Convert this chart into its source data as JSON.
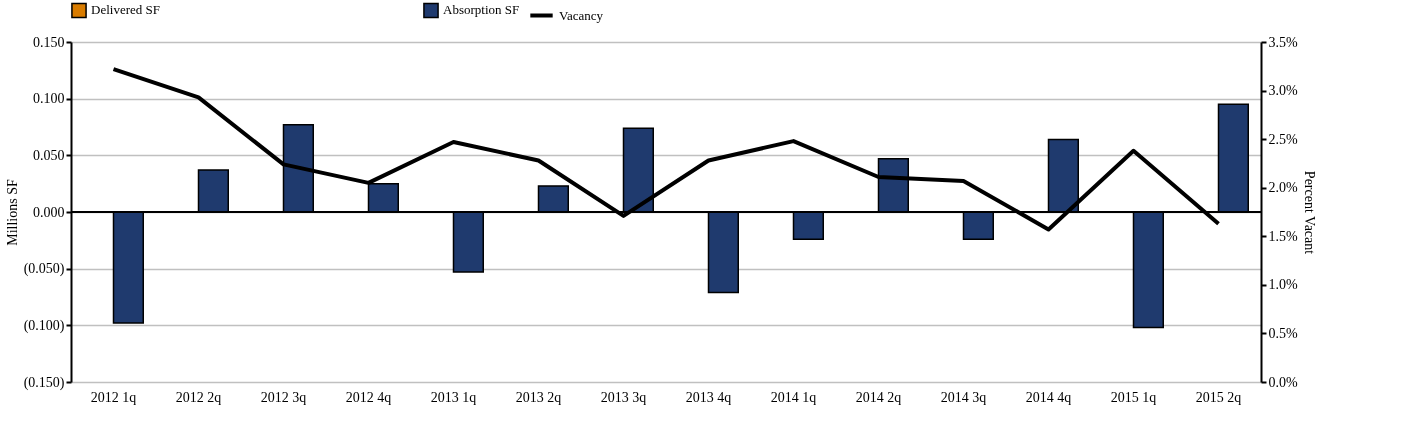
{
  "chart_data": {
    "type": "bar",
    "categories": [
      "2012 1q",
      "2012 2q",
      "2012 3q",
      "2012 4q",
      "2013 1q",
      "2013 2q",
      "2013 3q",
      "2013 4q",
      "2014 1q",
      "2014 2q",
      "2014 3q",
      "2014 4q",
      "2015 1q",
      "2015 2q"
    ],
    "series": [
      {
        "name": "Delivered SF",
        "color": "#d97c00",
        "values": [
          null,
          null,
          null,
          null,
          null,
          null,
          null,
          null,
          null,
          null,
          null,
          null,
          null,
          null
        ]
      },
      {
        "name": "Absorption SF",
        "color": "#1f3a6e",
        "values": [
          -0.098,
          0.037,
          0.077,
          0.025,
          -0.053,
          0.023,
          0.074,
          -0.071,
          -0.024,
          0.047,
          -0.024,
          0.064,
          -0.102,
          0.095
        ]
      },
      {
        "name": "Vacancy",
        "type": "line",
        "axis": "y2",
        "color": "#000000",
        "values": [
          3.22,
          2.93,
          2.24,
          2.05,
          2.47,
          2.28,
          1.71,
          2.28,
          2.48,
          2.11,
          2.07,
          1.57,
          2.38,
          1.63
        ]
      }
    ],
    "ylabel": "Millions SF",
    "y2label": "Percent Vacant",
    "ylim": [
      -0.15,
      0.15
    ],
    "yticks": [
      {
        "value": -0.15,
        "label": "(0.150)"
      },
      {
        "value": -0.1,
        "label": "(0.100)"
      },
      {
        "value": -0.05,
        "label": "(0.050)"
      },
      {
        "value": 0,
        "label": "0.000"
      },
      {
        "value": 0.05,
        "label": "0.050"
      },
      {
        "value": 0.1,
        "label": "0.100"
      },
      {
        "value": 0.15,
        "label": "0.150"
      }
    ],
    "y2lim": [
      0,
      3.5
    ],
    "y2ticks": [
      {
        "value": 0,
        "label": "0.0%"
      },
      {
        "value": 0.5,
        "label": "0.5%"
      },
      {
        "value": 1,
        "label": "1.0%"
      },
      {
        "value": 1.5,
        "label": "1.5%"
      },
      {
        "value": 2,
        "label": "2.0%"
      },
      {
        "value": 2.5,
        "label": "2.5%"
      },
      {
        "value": 3,
        "label": "3.0%"
      },
      {
        "value": 3.5,
        "label": "3.5%"
      }
    ],
    "grid": "y",
    "legend": "top",
    "marker": "none",
    "line_style": "solid"
  }
}
